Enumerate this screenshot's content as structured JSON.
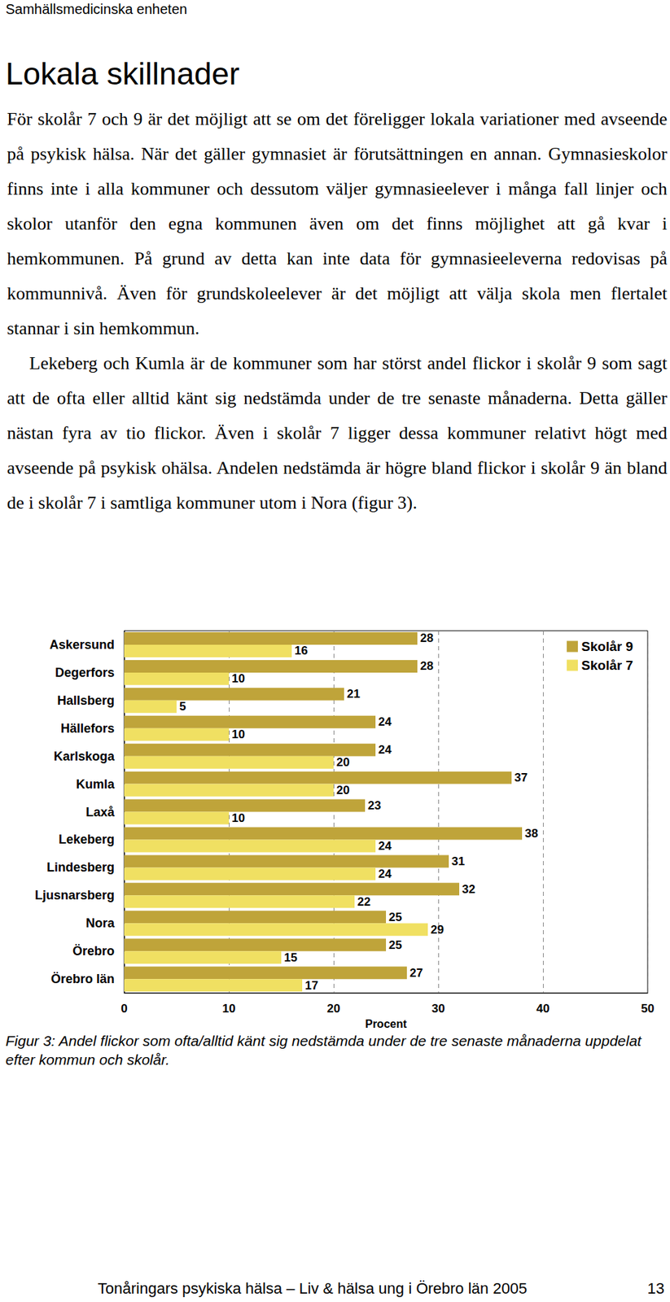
{
  "header": "Samhällsmedicinska enheten",
  "title": "Lokala skillnader",
  "paragraphs": [
    "För skolår 7 och 9 är det möjligt att se om det föreligger lokala variationer med avseende på psykisk hälsa. När det gäller gymnasiet är förutsättningen en annan. Gymnasieskolor finns inte i alla kommuner och dessutom väljer gymnasieelever i många fall linjer och skolor utanför den egna kommunen även om det finns möjlighet att gå kvar i hemkommunen. På grund av detta kan inte data för gymnasieeleverna redovisas på kommunnivå. Även för grundskoleelever är det möjligt att välja skola men flertalet stannar i sin hemkommun.",
    "Lekeberg och Kumla är de kommuner som har störst andel flickor i skolår 9 som sagt att de ofta eller alltid känt sig nedstämda under de tre senaste månaderna. Detta gäller nästan fyra av tio flickor. Även i skolår 7 ligger dessa kommuner relativt högt med avseende på psykisk ohälsa. Andelen nedstämda är högre bland flickor i skolår 9 än bland de i skolår 7 i samtliga kommuner utom i Nora (figur 3)."
  ],
  "chart_data": {
    "type": "bar",
    "orientation": "horizontal",
    "categories": [
      "Askersund",
      "Degerfors",
      "Hallsberg",
      "Hällefors",
      "Karlskoga",
      "Kumla",
      "Laxå",
      "Lekeberg",
      "Lindesberg",
      "Ljusnarsberg",
      "Nora",
      "Örebro",
      "Örebro län"
    ],
    "series": [
      {
        "name": "Skolår 9",
        "color": "#bfa43a",
        "values": [
          28,
          28,
          21,
          24,
          24,
          37,
          23,
          38,
          31,
          32,
          25,
          25,
          27
        ]
      },
      {
        "name": "Skolår 7",
        "color": "#f0e062",
        "values": [
          16,
          10,
          5,
          10,
          20,
          20,
          10,
          24,
          24,
          22,
          29,
          15,
          17
        ]
      }
    ],
    "xlabel": "Procent",
    "xlim": [
      0,
      50
    ],
    "xticks": [
      0,
      10,
      20,
      30,
      40,
      50
    ],
    "grid": true,
    "legend": "top right",
    "data_labels": true
  },
  "caption": "Figur 3: Andel flickor som ofta/alltid känt sig nedstämda under de tre senaste månaderna uppdelat efter kommun och skolår.",
  "footer": {
    "text": "Tonåringars psykiska hälsa – Liv & hälsa ung i Örebro län 2005",
    "page": 13
  }
}
